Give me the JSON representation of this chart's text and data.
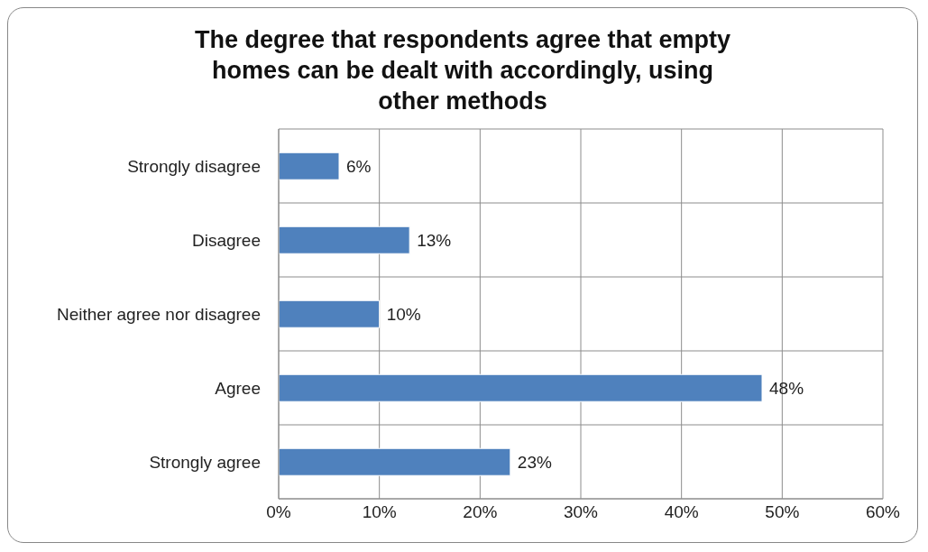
{
  "chart_data": {
    "type": "bar",
    "orientation": "horizontal",
    "title": "The degree that respondents agree that empty homes can be dealt with accordingly, using other methods",
    "categories": [
      "Strongly disagree",
      "Disagree",
      "Neither agree nor disagree",
      "Agree",
      "Strongly agree"
    ],
    "values": [
      6,
      13,
      10,
      48,
      23
    ],
    "value_labels": [
      "6%",
      "13%",
      "10%",
      "48%",
      "23%"
    ],
    "color": "#4f81bd",
    "xlim": [
      0,
      60
    ],
    "xticks": [
      {
        "value": 0,
        "label": "0%"
      },
      {
        "value": 10,
        "label": "10%"
      },
      {
        "value": 20,
        "label": "20%"
      },
      {
        "value": 30,
        "label": "30%"
      },
      {
        "value": 40,
        "label": "40%"
      },
      {
        "value": 50,
        "label": "50%"
      },
      {
        "value": 60,
        "label": "60%"
      }
    ],
    "grid": true
  }
}
